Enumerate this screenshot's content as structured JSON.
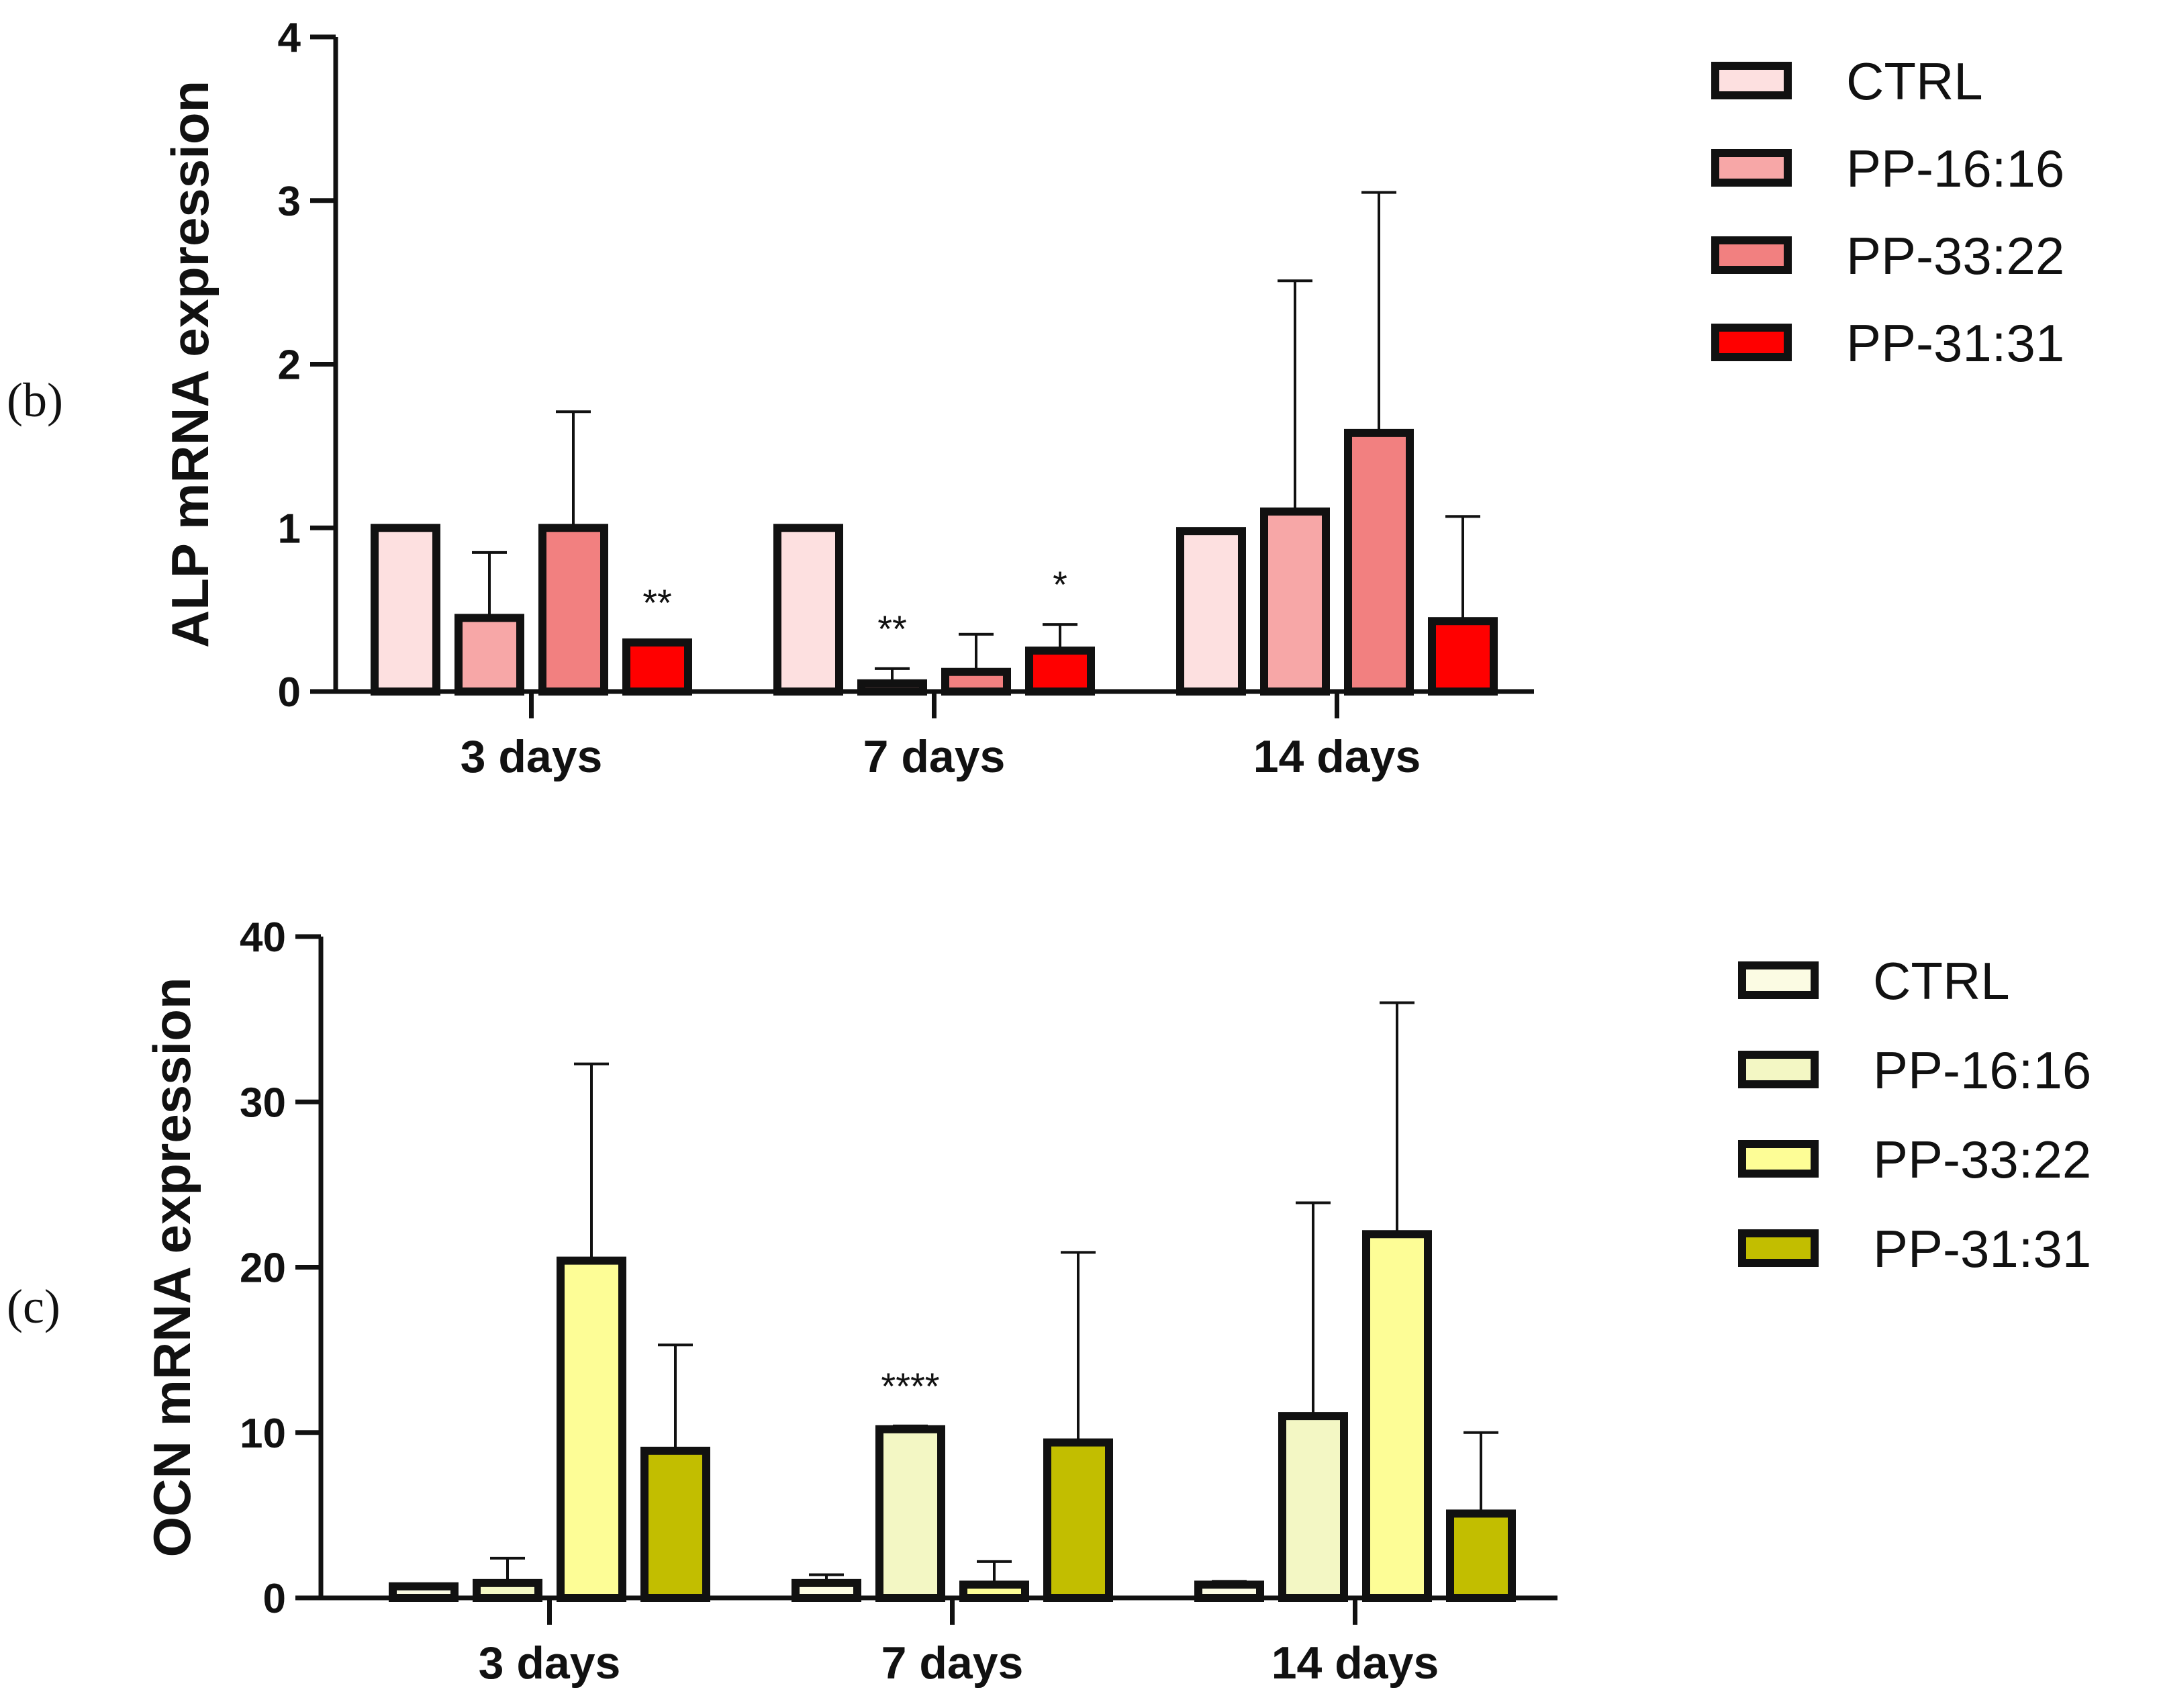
{
  "chart_data": [
    {
      "type": "bar",
      "panel_label": "(b)",
      "ylabel": "ALP mRNA expression",
      "ylim": [
        0,
        4
      ],
      "yticks": [
        "0",
        "1",
        "2",
        "3",
        "4"
      ],
      "categories": [
        "3 days",
        "7 days",
        "14 days"
      ],
      "legend_position": "top-right",
      "series": [
        {
          "name": "CTRL",
          "color": "#fde0e0",
          "values": [
            1.0,
            1.0,
            0.98
          ],
          "errors": [
            0.0,
            0.0,
            0.0
          ]
        },
        {
          "name": "PP-16:16",
          "color": "#f7a7a7",
          "values": [
            0.45,
            0.05,
            1.1
          ],
          "errors": [
            0.4,
            0.09,
            1.41
          ]
        },
        {
          "name": "PP-33:22",
          "color": "#f28080",
          "values": [
            1.0,
            0.12,
            1.58
          ],
          "errors": [
            0.71,
            0.23,
            1.47
          ]
        },
        {
          "name": "PP-31:31",
          "color": "#ff0000",
          "values": [
            0.3,
            0.25,
            0.43
          ],
          "errors": [
            0.0,
            0.16,
            0.64
          ]
        }
      ],
      "annotations": [
        {
          "category": "3 days",
          "series": "PP-31:31",
          "text": "**"
        },
        {
          "category": "7 days",
          "series": "PP-16:16",
          "text": "**"
        },
        {
          "category": "7 days",
          "series": "PP-31:31",
          "text": "*"
        }
      ]
    },
    {
      "type": "bar",
      "panel_label": "(c)",
      "ylabel": "OCN mRNA expression",
      "ylim": [
        0,
        40
      ],
      "yticks": [
        "0",
        "10",
        "20",
        "30",
        "40"
      ],
      "categories": [
        "3 days",
        "7 days",
        "14 days"
      ],
      "legend_position": "top-right",
      "series": [
        {
          "name": "CTRL",
          "color": "#fbfbe3",
          "values": [
            0.7,
            0.9,
            0.8
          ],
          "errors": [
            0.1,
            0.5,
            0.2
          ]
        },
        {
          "name": "PP-16:16",
          "color": "#f3f7c4",
          "values": [
            0.9,
            10.2,
            11.0
          ],
          "errors": [
            1.5,
            0.2,
            12.9
          ]
        },
        {
          "name": "PP-33:22",
          "color": "#fdfd96",
          "values": [
            20.4,
            0.8,
            22.0
          ],
          "errors": [
            11.9,
            1.4,
            14.0
          ]
        },
        {
          "name": "PP-31:31",
          "color": "#c2be00",
          "values": [
            8.9,
            9.4,
            5.1
          ],
          "errors": [
            6.4,
            11.5,
            4.9
          ]
        }
      ],
      "annotations": [
        {
          "category": "7 days",
          "series": "PP-16:16",
          "text": "****"
        }
      ]
    }
  ]
}
